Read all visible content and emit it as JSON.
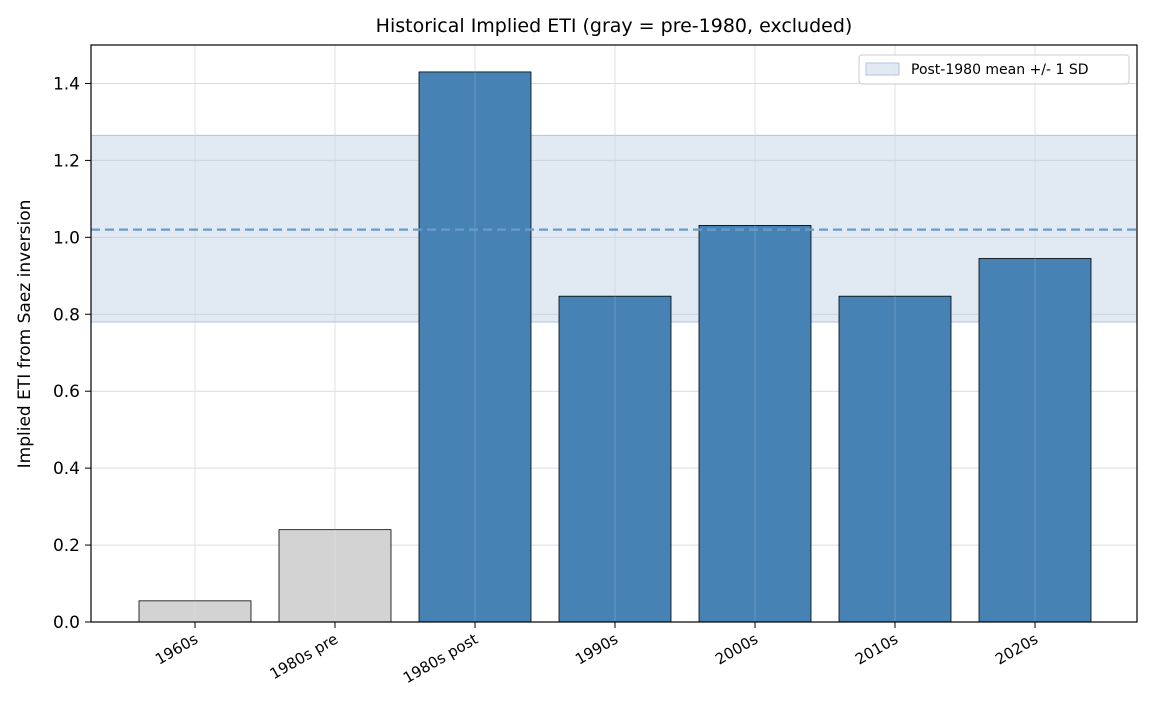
{
  "chart_data": {
    "type": "bar",
    "title": "Historical Implied ETI (gray = pre-1980, excluded)",
    "xlabel": "",
    "ylabel": "Implied ETI from Saez inversion",
    "categories": [
      "1960s",
      "1980s pre",
      "1980s post",
      "1990s",
      "2000s",
      "2010s",
      "2020s"
    ],
    "values": [
      0.055,
      0.24,
      1.43,
      0.847,
      1.031,
      0.847,
      0.945
    ],
    "excluded": [
      true,
      true,
      false,
      false,
      false,
      false,
      false
    ],
    "ylim": [
      0,
      1.5
    ],
    "yticks": [
      "0.0",
      "0.2",
      "0.4",
      "0.6",
      "0.8",
      "1.0",
      "1.2",
      "1.4"
    ],
    "band": {
      "label": "Post-1980 mean +/- 1 SD",
      "mean": 1.02,
      "low": 0.78,
      "high": 1.265
    },
    "grid": true,
    "legend_position": "top-right",
    "colors": {
      "included": "#4682b4",
      "excluded": "#d3d3d3",
      "band": "#b0c4de",
      "mean_line": "#6c9bc8",
      "edge": "#000000",
      "grid": "#dcdcdc"
    }
  }
}
